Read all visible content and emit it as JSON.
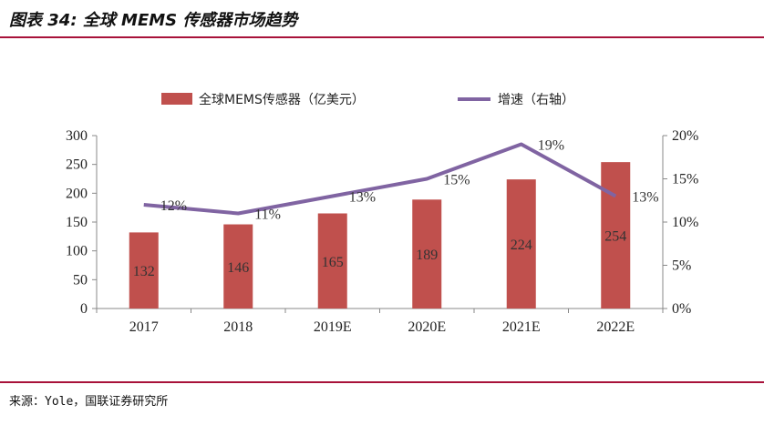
{
  "header": {
    "title": "图表 34: 全球 MEMS 传感器市场趋势"
  },
  "footer": {
    "source": "来源：Yole，国联证券研究所"
  },
  "colors": {
    "bar": "#c0504d",
    "line": "#8064a2",
    "rule": "#a8123a"
  },
  "chart_data": {
    "type": "bar",
    "title": "",
    "categories": [
      "2017",
      "2018",
      "2019E",
      "2020E",
      "2021E",
      "2022E"
    ],
    "series": [
      {
        "name": "全球MEMS传感器（亿美元）",
        "type": "bar",
        "axis": "left",
        "values": [
          132,
          146,
          165,
          189,
          224,
          254
        ],
        "labels": [
          "132",
          "146",
          "165",
          "189",
          "224",
          "254"
        ]
      },
      {
        "name": "增速（右轴）",
        "type": "line",
        "axis": "right",
        "values": [
          12,
          11,
          13,
          15,
          19,
          13
        ],
        "labels": [
          "12%",
          "11%",
          "13%",
          "15%",
          "19%",
          "13%"
        ]
      }
    ],
    "left_axis": {
      "ylim": [
        0,
        300
      ],
      "ticks": [
        "0",
        "50",
        "100",
        "150",
        "200",
        "250",
        "300"
      ]
    },
    "right_axis": {
      "ylim": [
        0,
        20
      ],
      "ticks": [
        "0%",
        "5%",
        "10%",
        "15%",
        "20%"
      ]
    },
    "legend_position": "top-center",
    "grid": false
  }
}
